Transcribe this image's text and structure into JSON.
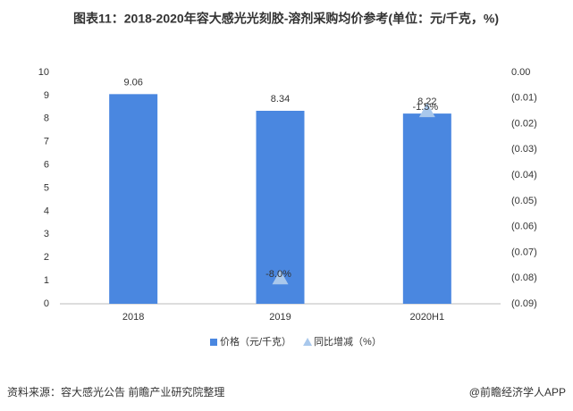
{
  "chart_data": {
    "type": "combo",
    "title": "图表11：2018-2020年容大感光光刻胶-溶剂采购均价参考(单位：元/千克，%)",
    "categories": [
      "2018",
      "2019",
      "2020H1"
    ],
    "series": [
      {
        "name": "价格（元/千克）",
        "type": "bar",
        "color": "#4a87e0",
        "values": [
          9.06,
          8.34,
          8.22
        ]
      },
      {
        "name": "同比增减（%）",
        "type": "scatter",
        "axis": "y2",
        "color": "#a9c8ec",
        "values": [
          null,
          -0.08,
          -0.015
        ],
        "value_labels": [
          null,
          "-8.0%",
          "-1.5%"
        ]
      }
    ],
    "ylim": [
      0,
      10
    ],
    "yticks": [
      0,
      1,
      2,
      3,
      4,
      5,
      6,
      7,
      8,
      9,
      10
    ],
    "y2lim": [
      -0.09,
      0
    ],
    "y2ticks": [
      {
        "value": 0,
        "label": "0.00"
      },
      {
        "value": -0.01,
        "label": "(0.01)"
      },
      {
        "value": -0.02,
        "label": "(0.02)"
      },
      {
        "value": -0.03,
        "label": "(0.03)"
      },
      {
        "value": -0.04,
        "label": "(0.04)"
      },
      {
        "value": -0.05,
        "label": "(0.05)"
      },
      {
        "value": -0.06,
        "label": "(0.06)"
      },
      {
        "value": -0.07,
        "label": "(0.07)"
      },
      {
        "value": -0.08,
        "label": "(0.08)"
      },
      {
        "value": -0.09,
        "label": "(0.09)"
      }
    ],
    "legend": "bottom",
    "source": "资料来源：容大感光公告 前瞻产业研究院整理",
    "credit": "@前瞻经济学人APP"
  }
}
